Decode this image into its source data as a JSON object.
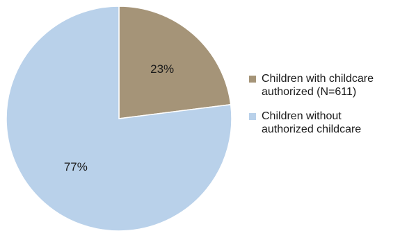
{
  "chart_data": {
    "type": "pie",
    "slices": [
      {
        "label": "Children with childcare authorized (N=611)",
        "value": 23,
        "data_label": "23%",
        "color": "#a59478"
      },
      {
        "label": "Children without authorized childcare",
        "value": 77,
        "data_label": "77%",
        "color": "#b9d1ea"
      }
    ],
    "start_angle_deg": 0,
    "direction": "clockwise",
    "legend_position": "right"
  },
  "legend": {
    "items": [
      {
        "label_line1": "Children with childcare",
        "label_line2": "authorized (N=611)",
        "color": "#a59478"
      },
      {
        "label_line1": "Children without",
        "label_line2": "authorized childcare",
        "color": "#b9d1ea"
      }
    ]
  }
}
